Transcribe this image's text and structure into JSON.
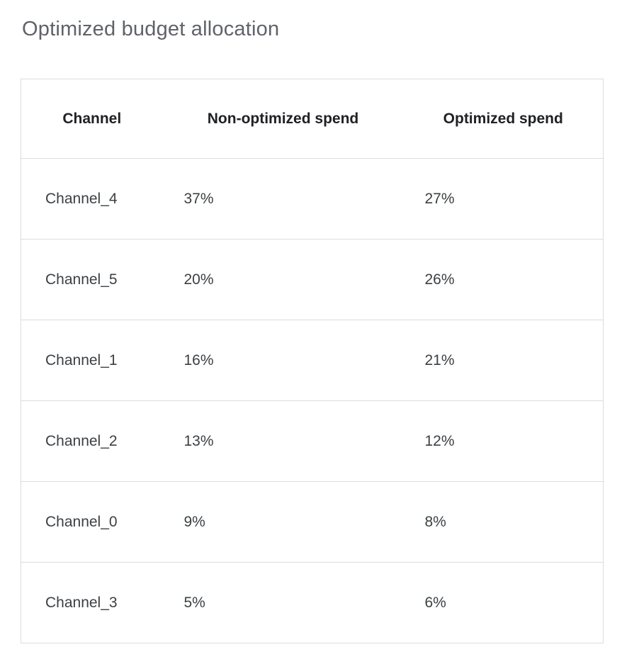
{
  "title": "Optimized budget allocation",
  "table": {
    "headers": [
      "Channel",
      "Non-optimized spend",
      "Optimized spend"
    ],
    "rows": [
      [
        "Channel_4",
        "37%",
        "27%"
      ],
      [
        "Channel_5",
        "20%",
        "26%"
      ],
      [
        "Channel_1",
        "16%",
        "21%"
      ],
      [
        "Channel_2",
        "13%",
        "12%"
      ],
      [
        "Channel_0",
        "9%",
        "8%"
      ],
      [
        "Channel_3",
        "5%",
        "6%"
      ]
    ]
  },
  "colors": {
    "background": "#ffffff",
    "title_text": "#5f6368",
    "header_text": "#202124",
    "body_text": "#3c4043",
    "border": "#dadce0"
  },
  "chart_data": {
    "type": "table",
    "title": "Optimized budget allocation",
    "columns": [
      "Channel",
      "Non-optimized spend",
      "Optimized spend"
    ],
    "categories": [
      "Channel_4",
      "Channel_5",
      "Channel_1",
      "Channel_2",
      "Channel_0",
      "Channel_3"
    ],
    "series": [
      {
        "name": "Non-optimized spend",
        "unit": "%",
        "values": [
          37,
          20,
          16,
          13,
          9,
          5
        ]
      },
      {
        "name": "Optimized spend",
        "unit": "%",
        "values": [
          27,
          26,
          21,
          12,
          8,
          6
        ]
      }
    ]
  }
}
